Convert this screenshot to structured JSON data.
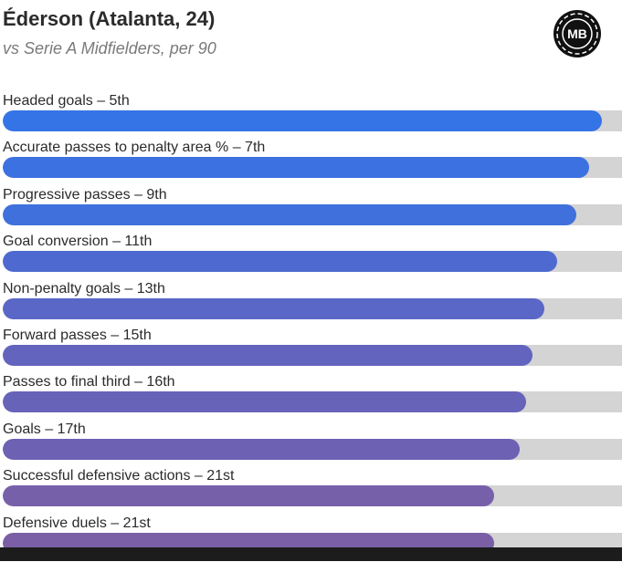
{
  "header": {
    "title": "Éderson (Atalanta, 24)",
    "subtitle": "vs Serie A Midfielders, per 90",
    "logo_text": "MB"
  },
  "colors": {
    "track": "#d4d4d4",
    "title": "#2b2b2b",
    "subtitle": "#7a7a7a",
    "bottom_bar": "#1c1c1c"
  },
  "chart_data": {
    "type": "bar",
    "orientation": "horizontal",
    "title": "Éderson (Atalanta, 24)",
    "subtitle": "vs Serie A Midfielders, per 90",
    "unit": "percentile",
    "xlim": [
      0,
      100
    ],
    "categories": [
      "Headed goals – 5th",
      "Accurate passes to penalty area % – 7th",
      "Progressive passes – 9th",
      "Goal conversion – 11th",
      "Non-penalty goals – 13th",
      "Forward passes – 15th",
      "Passes to final third – 16th",
      "Goals – 17th",
      "Successful defensive actions – 21st",
      "Defensive duels – 21st"
    ],
    "values": [
      95,
      93,
      91,
      88,
      86,
      84,
      83,
      82,
      78,
      78
    ],
    "colors": [
      "#3574e6",
      "#3b71e0",
      "#4070db",
      "#4e6ad0",
      "#5a67c7",
      "#6364be",
      "#6763b9",
      "#6d61b4",
      "#7660aa",
      "#7a5fa6"
    ]
  }
}
